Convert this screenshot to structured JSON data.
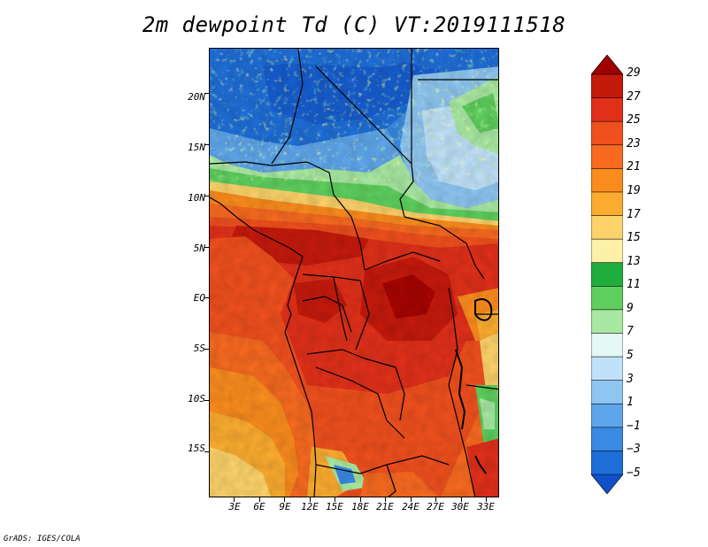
{
  "title": "2m dewpoint Td (C) VT:2019111518",
  "credit": "GrADS: IGES/COLA",
  "map": {
    "lon_range": [
      0,
      34.5
    ],
    "lat_range": [
      -19.5,
      24.5
    ],
    "lat_labels": [
      "20N",
      "15N",
      "10N",
      "5N",
      "EQ",
      "5S",
      "10S",
      "15S"
    ],
    "lat_values": [
      20,
      15,
      10,
      5,
      0,
      -5,
      -10,
      -15
    ],
    "lon_labels": [
      "3E",
      "6E",
      "9E",
      "12E",
      "15E",
      "18E",
      "21E",
      "24E",
      "27E",
      "30E",
      "33E"
    ],
    "lon_values": [
      3,
      6,
      9,
      12,
      15,
      18,
      21,
      24,
      27,
      30,
      33
    ]
  },
  "colorbar": {
    "labels": [
      "29",
      "27",
      "25",
      "23",
      "21",
      "19",
      "17",
      "15",
      "13",
      "11",
      "9",
      "7",
      "5",
      "3",
      "1",
      "−1",
      "−3",
      "−5"
    ],
    "colors": [
      "#a00000",
      "#c41a0c",
      "#e0301a",
      "#f0501e",
      "#f76a20",
      "#fa8c1e",
      "#fbac30",
      "#fcd26a",
      "#fff0a8",
      "#1fae3c",
      "#5ecf5e",
      "#a8e8a2",
      "#e4f8f4",
      "#bfe2fa",
      "#8ec6f2",
      "#5ea6ec",
      "#3a8ae4",
      "#1e6ed8",
      "#1050c8"
    ]
  }
}
